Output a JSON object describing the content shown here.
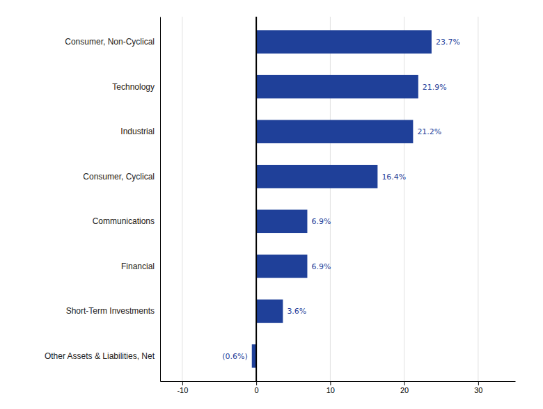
{
  "chart_data": {
    "type": "bar",
    "orientation": "horizontal",
    "categories": [
      "Other Assets & Liabilities, Net",
      "Short-Term Investments",
      "Financial",
      "Communications",
      "Consumer, Cyclical",
      "Industrial",
      "Technology",
      "Consumer, Non-Cyclical"
    ],
    "values": [
      -0.6,
      3.6,
      6.9,
      6.9,
      16.4,
      21.2,
      21.9,
      23.7
    ],
    "value_labels": [
      "(0.6%)",
      "3.6%",
      "6.9%",
      "6.9%",
      "16.4%",
      "21.2%",
      "21.9%",
      "23.7%"
    ],
    "data_labels": true,
    "color": "#1F4099",
    "xlim": [
      -13,
      35
    ],
    "xticks": [
      -10,
      0,
      10,
      20,
      30
    ],
    "grid": true
  }
}
